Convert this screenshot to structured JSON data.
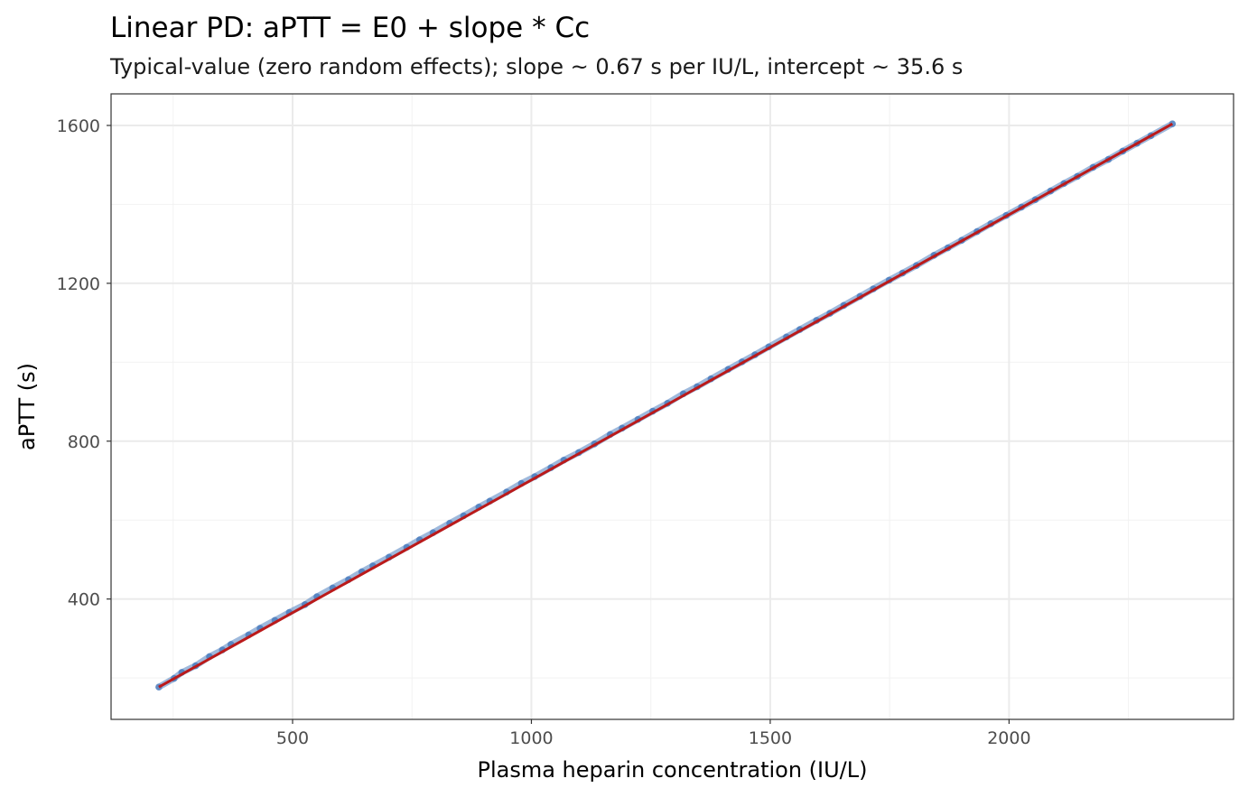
{
  "chart_data": {
    "type": "scatter",
    "title": "Linear PD: aPTT = E0 + slope * Cc",
    "subtitle": "Typical-value (zero random effects); slope ~ 0.67 s per IU/L, intercept ~ 35.6 s",
    "xlabel": "Plasma heparin concentration (IU/L)",
    "ylabel": "aPTT (s)",
    "xlim": [
      120,
      2470
    ],
    "ylim": [
      95,
      1680
    ],
    "x_ticks": [
      500,
      1000,
      1500,
      2000
    ],
    "x_tick_labels": [
      "500",
      "1000",
      "1500",
      "2000"
    ],
    "y_ticks": [
      400,
      800,
      1200,
      1600
    ],
    "y_tick_labels": [
      "400",
      "800",
      "1200",
      "1600"
    ],
    "grid": true,
    "legend": "none",
    "points": {
      "color": "#4f7fbf",
      "x": [
        220,
        252,
        268,
        297,
        326,
        353,
        371,
        408,
        432,
        463,
        493,
        526,
        551,
        584,
        617,
        645,
        668,
        702,
        739,
        766,
        794,
        829,
        858,
        890,
        913,
        948,
        979,
        1007,
        1041,
        1068,
        1099,
        1132,
        1165,
        1190,
        1223,
        1254,
        1285,
        1318,
        1347,
        1376,
        1412,
        1441,
        1468,
        1497,
        1534,
        1562,
        1597,
        1625,
        1654,
        1688,
        1716,
        1749,
        1777,
        1806,
        1843,
        1872,
        1901,
        1933,
        1962,
        1994,
        2026,
        2055,
        2087,
        2115,
        2143,
        2176,
        2208,
        2238,
        2268,
        2297,
        2342
      ],
      "y": [
        177,
        199,
        214,
        231,
        254,
        271,
        285,
        309,
        326,
        346,
        366,
        386,
        406,
        428,
        449,
        469,
        484,
        506,
        531,
        550,
        568,
        592,
        611,
        633,
        648,
        671,
        693,
        710,
        733,
        752,
        771,
        793,
        817,
        833,
        855,
        876,
        896,
        920,
        938,
        958,
        982,
        1001,
        1019,
        1039,
        1064,
        1083,
        1106,
        1124,
        1144,
        1167,
        1186,
        1208,
        1226,
        1245,
        1271,
        1290,
        1309,
        1331,
        1351,
        1372,
        1393,
        1412,
        1434,
        1453,
        1471,
        1494,
        1514,
        1535,
        1555,
        1574,
        1604
      ]
    },
    "fit_line": {
      "color": "#bb1a1a",
      "x": [
        220,
        2342
      ],
      "y": [
        177,
        1604
      ]
    }
  }
}
